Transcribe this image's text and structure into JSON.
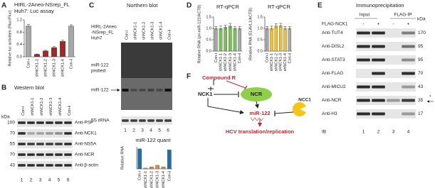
{
  "chart_data": [
    {
      "type": "bar",
      "title": "HIRL-2Aneo-NSrep_FL",
      "subtitle": "Huh7: Luc assay",
      "ylabel": "Relative luc activities (Rluc/Fluc)",
      "categories": [
        "Con-i",
        "shNCK1-1",
        "shNCK1-2",
        "shNCK1-3",
        "shNCK1-4",
        "Con-ii"
      ],
      "values": [
        1.0,
        0.08,
        0.19,
        0.3,
        0.5,
        1.0
      ],
      "errors": [
        0.05,
        0.01,
        0.02,
        0.03,
        0.04,
        0.04
      ],
      "colors": [
        "#a8a8a8",
        "#9c2a2a",
        "#9c2a2a",
        "#9c2a2a",
        "#9c2a2a",
        "#a8a8a8"
      ],
      "ylim": [
        0,
        1.2
      ],
      "yticks": [
        {
          "value": 0,
          "label": "0.0"
        },
        0.4,
        0.8,
        1.2
      ]
    },
    {
      "type": "bar",
      "title": "miR-122 quant",
      "ylabel": "Relative RNA",
      "categories": [
        "Con-i",
        "shNCK1-1",
        "shNCK1-2",
        "shNCK1-3",
        "shNCK1-4",
        "Con-ii"
      ],
      "values": [
        1.0,
        0.04,
        0.1,
        0.18,
        0.1,
        0.95
      ],
      "colors": [
        "#1f6fa8",
        "#e8883a",
        "#e8883a",
        "#e8883a",
        "#e8883a",
        "#1f6fa8"
      ],
      "ylim": [
        0,
        1.1
      ]
    },
    {
      "type": "bar",
      "title": "RT-qPCR",
      "ylabel": "Relative RNA (pri-miR-122/ACTB)",
      "categories": [
        "Con-i",
        "shNCK1-1",
        "shNCK1-2",
        "shNCK1-3",
        "shNCK1-4",
        "Con-ii"
      ],
      "values": [
        1.0,
        1.0,
        1.05,
        1.1,
        1.0,
        1.0
      ],
      "errors": [
        0.08,
        0.1,
        0.1,
        0.12,
        0.08,
        0.08
      ],
      "colors": [
        "#a8a8a8",
        "#7cbf5a",
        "#7cbf5a",
        "#7cbf5a",
        "#7cbf5a",
        "#a8a8a8"
      ],
      "ylim": [
        0,
        1.5
      ],
      "yticks": [
        {
          "value": 0,
          "label": "0.0"
        },
        0.5,
        {
          "value": 1,
          "label": "1.0"
        },
        1.5
      ]
    },
    {
      "type": "bar",
      "title": "RT-qPCR",
      "ylabel": "Relative RNA (ELAVL1/ACTB)",
      "categories": [
        "Con-i",
        "shNCK1-1",
        "shNCK1-2",
        "shNCK1-3",
        "shNCK1-4",
        "Con-ii"
      ],
      "values": [
        1.0,
        1.0,
        1.1,
        1.12,
        1.0,
        1.0
      ],
      "errors": [
        0.08,
        0.1,
        0.1,
        0.1,
        0.08,
        0.08
      ],
      "colors": [
        "#a8a8a8",
        "#f0c030",
        "#f0c030",
        "#f0c030",
        "#f0c030",
        "#a8a8a8"
      ],
      "ylim": [
        0,
        1.5
      ],
      "yticks": [
        {
          "value": 0,
          "label": "0.0"
        },
        0.5,
        {
          "value": 1,
          "label": "1.0"
        },
        1.5
      ]
    }
  ],
  "panels": {
    "A": {
      "letter": "A"
    },
    "B": {
      "letter": "B",
      "title": "Western blot",
      "kda_header": "kDa",
      "lanes": [
        "Con-i",
        "shNCK1-1",
        "shNCK1-2",
        "shNCK1-3",
        "shNCK1-4",
        "Con-ii"
      ],
      "lane_numbers": [
        "1",
        "2",
        "3",
        "4",
        "5",
        "6"
      ],
      "rows": [
        {
          "label": "Anti-PSF",
          "kda": "100"
        },
        {
          "label": "Anti-NCK1",
          "kda": "70"
        },
        {
          "label": "Anti-NS5A",
          "kda": "55"
        },
        {
          "label": "Anti-NCR",
          "kda": "70"
        },
        {
          "label": "Anti-β-actin",
          "kda": "43"
        }
      ]
    },
    "C": {
      "letter": "C",
      "title": "Northern blot",
      "construct": "HIRL-2Aneo",
      "construct2": "-NSrep_FL",
      "cell": "Huh7",
      "probe": "miR-122",
      "probe2": "probed",
      "band": "miR-122",
      "loading": "5S rRNA",
      "lanes": [
        "Con-i",
        "shNCK1-1",
        "shNCK1-2",
        "shNCK1-3",
        "shNCK1-4",
        "Con-ii"
      ],
      "lane_numbers": [
        "1",
        "2",
        "3",
        "4",
        "5",
        "6"
      ]
    },
    "D": {
      "letter": "D"
    },
    "E": {
      "letter": "E",
      "title": "Immunoprecipitation",
      "input": "Input",
      "ip": "FLAG-IP",
      "bait": "FLAG-NCK1",
      "conditions": [
        "-",
        "+",
        "-",
        "+"
      ],
      "kda_header": "kDa",
      "star": "*",
      "ib": "IB",
      "lane_numbers": [
        "1",
        "2",
        "3",
        "4"
      ],
      "rows": [
        {
          "label": "Anti-TUT4",
          "kda": "170"
        },
        {
          "label": "Anti-DISL2",
          "kda": "95"
        },
        {
          "label": "Anti-STAT3",
          "kda": "95"
        },
        {
          "label": "Anti-FLAG",
          "kda": "70"
        },
        {
          "label": "Anti-MICU2",
          "kda": "43"
        },
        {
          "label": "Anti-NCR",
          "kda": "35"
        },
        {
          "label": "Anti-H3",
          "kda": "17"
        }
      ]
    },
    "F": {
      "letter": "F",
      "compound": "Compound R",
      "nck1": "NCK1",
      "ncr": "NCR",
      "ncc1": "NCC1",
      "mir": "miR-122",
      "outcome": "HCV translation/replication"
    }
  }
}
